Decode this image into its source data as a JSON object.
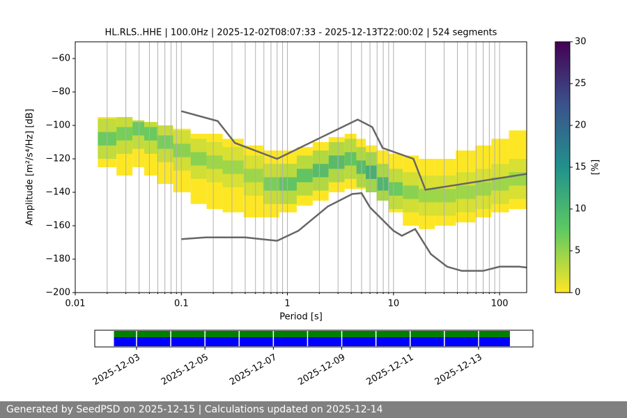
{
  "chart_data": [
    {
      "type": "ppsd",
      "title": "HL.RLS..HHE | 100.0Hz | 2025-12-02T08:07:33 - 2025-12-13T22:00:02 | 524 segments",
      "xlabel": "Period [s]",
      "ylabel": "Amplitude [m²/s⁴/Hz] [dB]",
      "log_x": true,
      "grid": "x",
      "xlim": [
        0.01,
        180
      ],
      "xticks": [
        0.01,
        0.1,
        1,
        10,
        100
      ],
      "x_minor_ticks": [
        0.02,
        0.03,
        0.04,
        0.05,
        0.06,
        0.07,
        0.08,
        0.09,
        0.2,
        0.3,
        0.4,
        0.5,
        0.6,
        0.7,
        0.8,
        0.9,
        2,
        3,
        4,
        5,
        6,
        7,
        8,
        9,
        20,
        30,
        40,
        50,
        60,
        70,
        80,
        90
      ],
      "ylim": [
        -200,
        -50
      ],
      "yticks": [
        {
          "value": -200,
          "label": "−200"
        },
        {
          "value": -180,
          "label": "−180"
        },
        {
          "value": -160,
          "label": "−160"
        },
        {
          "value": -140,
          "label": "−140"
        },
        {
          "value": -120,
          "label": "−120"
        },
        {
          "value": -100,
          "label": "−100"
        },
        {
          "value": -80,
          "label": "−80"
        },
        {
          "value": -60,
          "label": "−60"
        }
      ],
      "periods": [
        0.02,
        0.03,
        0.04,
        0.05,
        0.07,
        0.1,
        0.15,
        0.2,
        0.3,
        0.5,
        0.7,
        1,
        1.5,
        2,
        3,
        4,
        5,
        6,
        8,
        10,
        15,
        20,
        30,
        50,
        70,
        100,
        150
      ],
      "high": [
        -95,
        -95,
        -97,
        -98,
        -100,
        -102,
        -105,
        -105,
        -108,
        -112,
        -115,
        -115,
        -113,
        -110,
        -107,
        -105,
        -108,
        -112,
        -115,
        -117,
        -118,
        -120,
        -120,
        -115,
        -112,
        -108,
        -103
      ],
      "low": [
        -125,
        -130,
        -125,
        -130,
        -135,
        -140,
        -147,
        -150,
        -152,
        -155,
        -155,
        -152,
        -148,
        -145,
        -140,
        -138,
        -138,
        -140,
        -145,
        -152,
        -160,
        -162,
        -160,
        -158,
        -155,
        -152,
        -150
      ],
      "mode": [
        -108,
        -105,
        -102,
        -105,
        -110,
        -115,
        -120,
        -122,
        -125,
        -130,
        -135,
        -135,
        -130,
        -127,
        -122,
        -120,
        -125,
        -128,
        -135,
        -138,
        -140,
        -142,
        -142,
        -140,
        -138,
        -135,
        -132
      ],
      "mode_percent": [
        8,
        7,
        8,
        8,
        7,
        6,
        6,
        5,
        5,
        5,
        7,
        9,
        9,
        10,
        10,
        9,
        10,
        12,
        11,
        8,
        6,
        5,
        5,
        5,
        5,
        5,
        5
      ],
      "colormap": [
        "#fde725",
        "#5ec962",
        "#21918c",
        "#3b528b",
        "#440154"
      ],
      "clim": [
        0,
        30
      ],
      "cticks": [
        0,
        5,
        10,
        15,
        20,
        25,
        30
      ],
      "clabel": "[%]",
      "noise_models": [
        {
          "color": "#666666",
          "x": [
            0.1,
            0.22,
            0.32,
            0.8,
            4.6,
            6.3,
            7.9,
            15.4,
            20,
            180
          ],
          "values": [
            -91.5,
            -97.4,
            -110.5,
            -120,
            -96.5,
            -101,
            -113.5,
            -120,
            -138.5,
            -129
          ]
        },
        {
          "color": "#666666",
          "x": [
            0.1,
            0.17,
            0.4,
            0.8,
            1.27,
            2.4,
            4.1,
            5,
            6,
            10,
            12,
            16,
            22.5,
            32,
            44,
            70,
            100,
            153,
            180
          ],
          "values": [
            -168,
            -167,
            -167,
            -169,
            -163,
            -148.5,
            -141,
            -140.5,
            -149,
            -163,
            -166,
            -162,
            -177,
            -184.5,
            -187,
            -187,
            -184.5,
            -184.5,
            -185
          ]
        }
      ]
    },
    {
      "type": "timeline",
      "xlim": [
        "2025-12-01T18:40:00",
        "2025-12-14T14:10:00"
      ],
      "xticks": [
        "2025-12-03",
        "2025-12-05",
        "2025-12-07",
        "2025-12-09",
        "2025-12-11",
        "2025-12-13"
      ],
      "series": [
        {
          "color": "#008000",
          "start": "2025-12-02T08:07:33",
          "end": "2025-12-13T22:00:02"
        },
        {
          "color": "#0000ff",
          "start": "2025-12-02T08:07:33",
          "end": "2025-12-13T22:00:02"
        }
      ]
    }
  ],
  "footer": "Generated by SeedPSD on 2025-12-15 | Calculations updated on 2025-12-14"
}
